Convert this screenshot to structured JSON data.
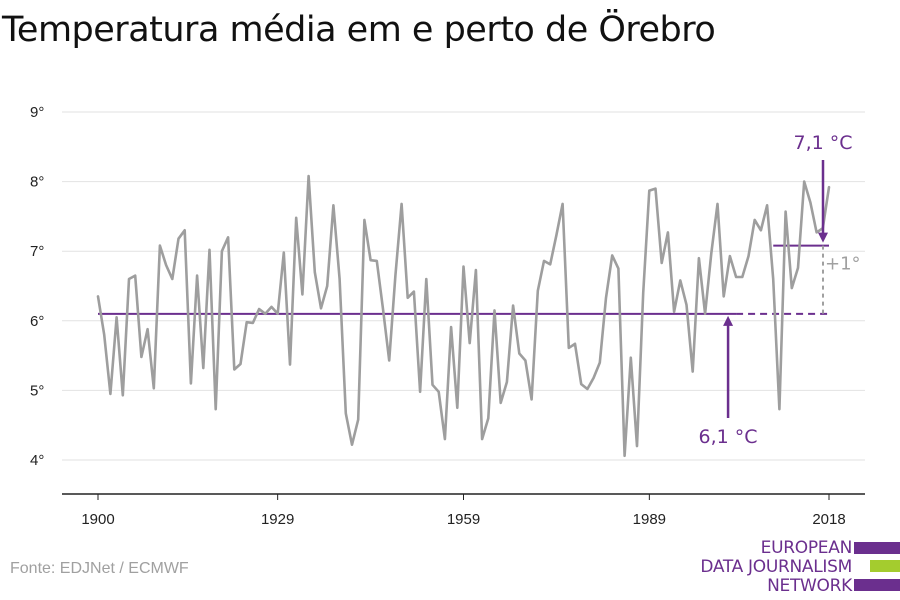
{
  "chart_data": {
    "type": "line",
    "title": "Temperatura média em e perto de Örebro",
    "xlim": [
      1900,
      2018
    ],
    "ylim": [
      4,
      9
    ],
    "x_ticks": [
      1900,
      1929,
      1959,
      1989,
      2018
    ],
    "y_ticks": [
      4,
      5,
      6,
      7,
      8,
      9
    ],
    "y_tick_suffix": "°",
    "grid": "horizontal",
    "series": [
      {
        "color": "#9e9e9e",
        "x": [
          1900,
          1901,
          1902,
          1903,
          1904,
          1905,
          1906,
          1907,
          1908,
          1909,
          1910,
          1911,
          1912,
          1913,
          1914,
          1915,
          1916,
          1917,
          1918,
          1919,
          1920,
          1921,
          1922,
          1923,
          1924,
          1925,
          1926,
          1927,
          1928,
          1929,
          1930,
          1931,
          1932,
          1933,
          1934,
          1935,
          1936,
          1937,
          1938,
          1939,
          1940,
          1941,
          1942,
          1943,
          1944,
          1945,
          1946,
          1947,
          1948,
          1949,
          1950,
          1951,
          1952,
          1953,
          1954,
          1955,
          1956,
          1957,
          1958,
          1959,
          1960,
          1961,
          1962,
          1963,
          1964,
          1965,
          1966,
          1967,
          1968,
          1969,
          1970,
          1971,
          1972,
          1973,
          1974,
          1975,
          1976,
          1977,
          1978,
          1979,
          1980,
          1981,
          1982,
          1983,
          1984,
          1985,
          1986,
          1987,
          1988,
          1989,
          1990,
          1991,
          1992,
          1993,
          1994,
          1995,
          1996,
          1997,
          1998,
          1999,
          2000,
          2001,
          2002,
          2003,
          2004,
          2005,
          2006,
          2007,
          2008,
          2009,
          2010,
          2011,
          2012,
          2013,
          2014,
          2015,
          2016,
          2017,
          2018
        ],
        "values": [
          6.35,
          5.8,
          4.95,
          6.05,
          4.93,
          6.6,
          6.65,
          5.48,
          5.88,
          5.03,
          7.08,
          6.8,
          6.6,
          7.18,
          7.3,
          5.1,
          6.65,
          5.32,
          7.02,
          4.73,
          7.0,
          7.2,
          5.3,
          5.38,
          5.98,
          5.97,
          6.17,
          6.1,
          6.2,
          6.1,
          6.98,
          5.37,
          7.48,
          6.38,
          8.08,
          6.7,
          6.18,
          6.5,
          7.66,
          6.6,
          4.67,
          4.22,
          4.58,
          7.45,
          6.87,
          6.86,
          6.17,
          5.43,
          6.65,
          7.68,
          6.33,
          6.42,
          4.98,
          6.6,
          5.08,
          4.98,
          4.3,
          5.91,
          4.75,
          6.78,
          5.68,
          6.73,
          4.3,
          4.6,
          6.15,
          4.82,
          5.12,
          6.22,
          5.53,
          5.43,
          4.87,
          6.43,
          6.86,
          6.81,
          7.23,
          7.68,
          5.61,
          5.67,
          5.09,
          5.02,
          5.18,
          5.4,
          6.33,
          6.94,
          6.75,
          4.06,
          5.47,
          4.2,
          6.4,
          7.87,
          7.9,
          6.83,
          7.27,
          6.13,
          6.58,
          6.23,
          5.27,
          6.9,
          6.1,
          6.97,
          7.68,
          6.35,
          6.93,
          6.63,
          6.63,
          6.93,
          7.45,
          7.3,
          7.66,
          6.6,
          4.73,
          7.57,
          6.47,
          6.76,
          8.0,
          7.7,
          7.27,
          7.33,
          7.92
        ]
      }
    ],
    "reference_lines": [
      {
        "label": "6,1 °C",
        "value": 6.1,
        "x_from": 1900,
        "x_to": 2018,
        "solid_until": 2003,
        "color": "#6b2f8e"
      },
      {
        "label": "7,1 °C",
        "value": 7.08,
        "x_from": 2009,
        "x_to": 2018,
        "color": "#6b2f8e"
      }
    ],
    "difference_annotation": {
      "label": "+1°",
      "x": 2018,
      "from": 6.1,
      "to": 7.08,
      "color": "#a0a0a0"
    }
  },
  "source": "Fonte: EDJNet / ECMWF",
  "logo": {
    "lines": [
      "EUROPEAN",
      "DATA JOURNALISM",
      "NETWORK"
    ],
    "colors": [
      "#6b2f8e",
      "#a4cc2e",
      "#6b2f8e"
    ]
  }
}
